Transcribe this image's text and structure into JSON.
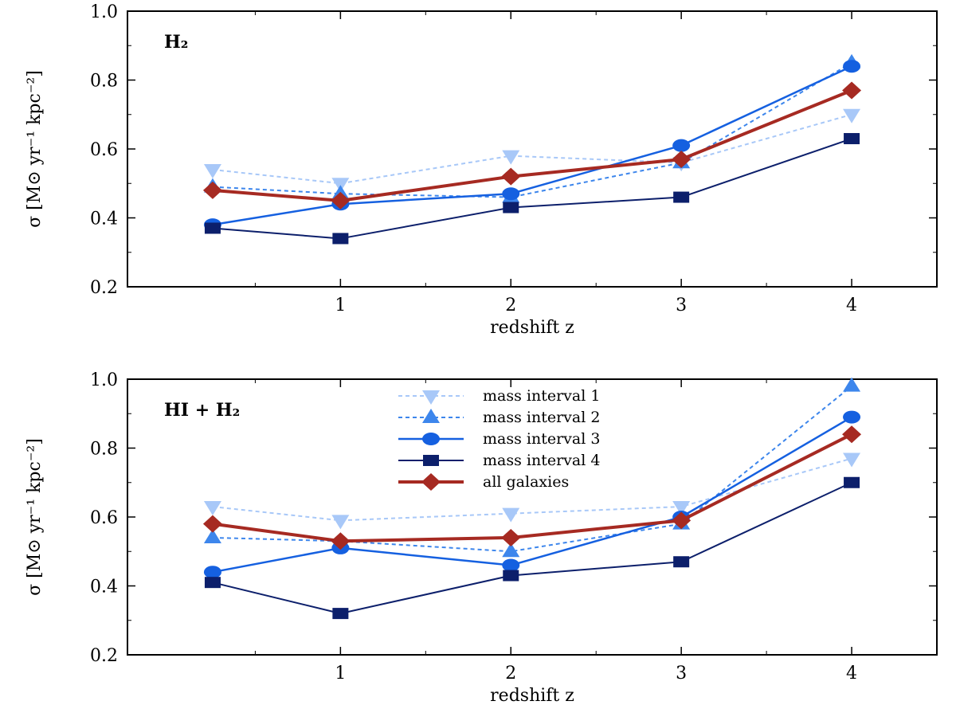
{
  "chart_data": [
    {
      "type": "line",
      "panel_label": "H₂",
      "xlabel": "redshift z",
      "ylabel": "σ [M⊙ yr⁻¹ kpc⁻²]",
      "xlim": [
        -0.25,
        4.5
      ],
      "ylim": [
        0.2,
        1.0
      ],
      "xticks": [
        1,
        2,
        3,
        4
      ],
      "yticks": [
        0.2,
        0.4,
        0.6,
        0.8,
        1.0
      ],
      "x": [
        0.25,
        1,
        2,
        3,
        4
      ],
      "series": [
        {
          "name": "mass interval 1",
          "values": [
            0.54,
            0.5,
            0.58,
            0.56,
            0.7
          ]
        },
        {
          "name": "mass interval 2",
          "values": [
            0.49,
            0.47,
            0.46,
            0.56,
            0.85
          ]
        },
        {
          "name": "mass interval 3",
          "values": [
            0.38,
            0.44,
            0.47,
            0.61,
            0.84
          ]
        },
        {
          "name": "mass interval 4",
          "values": [
            0.37,
            0.34,
            0.43,
            0.46,
            0.63
          ]
        },
        {
          "name": "all galaxies",
          "values": [
            0.48,
            0.45,
            0.52,
            0.57,
            0.77
          ]
        }
      ],
      "legend": "none"
    },
    {
      "type": "line",
      "panel_label": "HI + H₂",
      "xlabel": "redshift z",
      "ylabel": "σ [M⊙ yr⁻¹ kpc⁻²]",
      "xlim": [
        -0.25,
        4.5
      ],
      "ylim": [
        0.2,
        1.0
      ],
      "xticks": [
        1,
        2,
        3,
        4
      ],
      "yticks": [
        0.2,
        0.4,
        0.6,
        0.8,
        1.0
      ],
      "x": [
        0.25,
        1,
        2,
        3,
        4
      ],
      "series": [
        {
          "name": "mass interval 1",
          "values": [
            0.63,
            0.59,
            0.61,
            0.63,
            0.77
          ]
        },
        {
          "name": "mass interval 2",
          "values": [
            0.54,
            0.53,
            0.5,
            0.58,
            0.98
          ]
        },
        {
          "name": "mass interval 3",
          "values": [
            0.44,
            0.51,
            0.46,
            0.6,
            0.89
          ]
        },
        {
          "name": "mass interval 4",
          "values": [
            0.41,
            0.32,
            0.43,
            0.47,
            0.7
          ]
        },
        {
          "name": "all galaxies",
          "values": [
            0.58,
            0.53,
            0.54,
            0.59,
            0.84
          ]
        }
      ],
      "legend": "top-center"
    }
  ],
  "series_styles": [
    {
      "color": "#a8c8f8",
      "dash": "dotted",
      "marker": "triangle-down-icon",
      "width": 2
    },
    {
      "color": "#3d86ec",
      "dash": "dotted",
      "marker": "triangle-up-icon",
      "width": 2
    },
    {
      "color": "#1560e0",
      "dash": "solid",
      "marker": "circle-icon",
      "width": 2.5
    },
    {
      "color": "#0c1f6b",
      "dash": "solid",
      "marker": "square-icon",
      "width": 2
    },
    {
      "color": "#a62a22",
      "dash": "solid",
      "marker": "diamond-icon",
      "width": 4
    }
  ]
}
